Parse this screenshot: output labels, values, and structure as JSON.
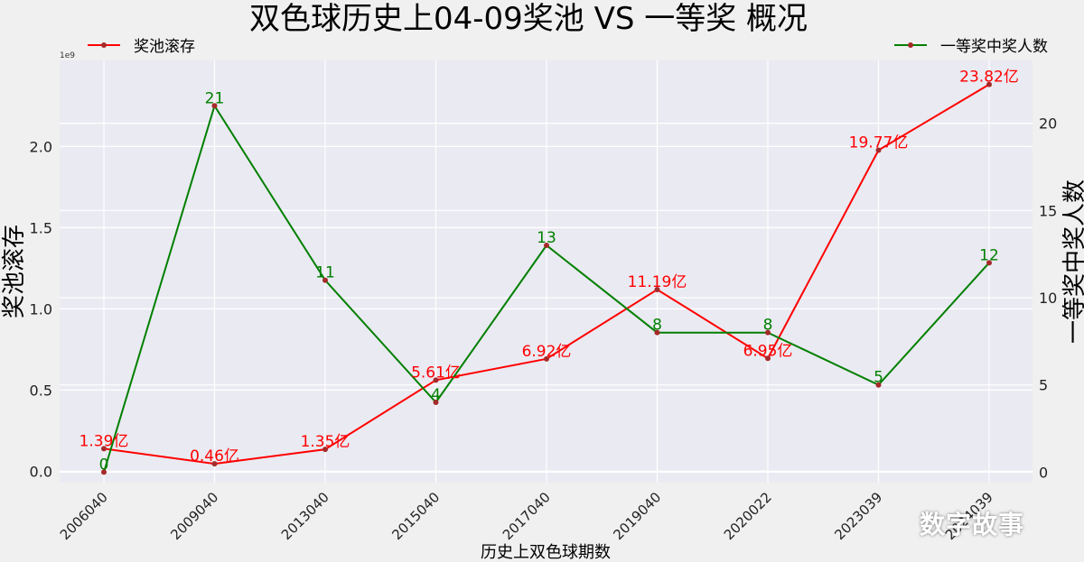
{
  "chart_data": {
    "type": "line",
    "title": "双色球历史上04-09奖池 VS 一等奖 概况",
    "xlabel": "历史上双色球期数",
    "ylabel_left": "奖池滚存",
    "ylabel_right": "一等奖中奖人数",
    "left_axis_offset_label": "1e9",
    "categories": [
      "2006040",
      "2009040",
      "2013040",
      "2015040",
      "2017040",
      "2019040",
      "2020022",
      "2023039",
      "2024039"
    ],
    "ylim_left": [
      -0.07,
      2.53
    ],
    "ylim_right": [
      -0.6,
      23.6
    ],
    "left_ticks": [
      0.0,
      0.5,
      1.0,
      1.5,
      2.0
    ],
    "left_tick_labels": [
      "0.0",
      "0.5",
      "1.0",
      "1.5",
      "2.0"
    ],
    "right_ticks": [
      0,
      5,
      10,
      15,
      20
    ],
    "right_tick_labels": [
      "0",
      "5",
      "10",
      "15",
      "20"
    ],
    "grid": true,
    "series": [
      {
        "name": "奖池滚存",
        "axis": "left",
        "color": "#ff0000",
        "values": [
          139000000,
          46000000,
          135000000,
          561000000,
          692000000,
          1119000000,
          695000000,
          1977000000,
          2382000000
        ],
        "labels": [
          "1.39亿",
          "0.46亿",
          "1.35亿",
          "5.61亿",
          "6.92亿",
          "11.19亿",
          "6.95亿",
          "19.77亿",
          "23.82亿"
        ]
      },
      {
        "name": "一等奖中奖人数",
        "axis": "right",
        "color": "#008000",
        "values": [
          0,
          21,
          11,
          4,
          13,
          8,
          8,
          5,
          12
        ],
        "labels": [
          "0",
          "21",
          "11",
          "4",
          "13",
          "8",
          "8",
          "5",
          "12"
        ]
      }
    ],
    "legend_left": "top-left",
    "legend_right": "top-right"
  },
  "watermark": "数字故事"
}
